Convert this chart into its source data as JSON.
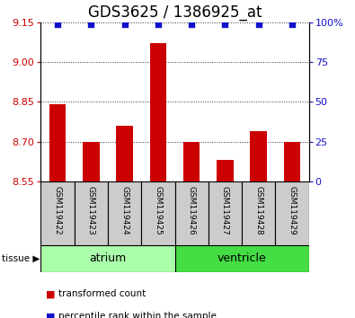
{
  "title": "GDS3625 / 1386925_at",
  "samples": [
    "GSM119422",
    "GSM119423",
    "GSM119424",
    "GSM119425",
    "GSM119426",
    "GSM119427",
    "GSM119428",
    "GSM119429"
  ],
  "bar_values": [
    8.84,
    8.7,
    8.76,
    9.07,
    8.7,
    8.63,
    8.74,
    8.7
  ],
  "percentile_values": [
    99,
    99,
    99,
    99,
    99,
    99,
    99,
    99
  ],
  "ylim_left": [
    8.55,
    9.15
  ],
  "ylim_right": [
    0,
    100
  ],
  "yticks_left": [
    8.55,
    8.7,
    8.85,
    9.0,
    9.15
  ],
  "yticks_right": [
    0,
    25,
    50,
    75,
    100
  ],
  "ytick_labels_right": [
    "0",
    "25",
    "50",
    "75",
    "100%"
  ],
  "bar_color": "#CC0000",
  "percentile_color": "#1111CC",
  "bar_bottom": 8.55,
  "tissue_groups": [
    {
      "label": "atrium",
      "color": "#AAFFAA"
    },
    {
      "label": "ventricle",
      "color": "#44DD44"
    }
  ],
  "tissue_label": "tissue",
  "legend_items": [
    {
      "label": "transformed count",
      "color": "#CC0000"
    },
    {
      "label": "percentile rank within the sample",
      "color": "#1111CC"
    }
  ],
  "grid_color": "#333333",
  "plot_bg": "#FFFFFF",
  "sample_box_color": "#CCCCCC",
  "title_fontsize": 12,
  "tick_fontsize": 8,
  "sample_fontsize": 6.5,
  "tissue_fontsize": 9,
  "legend_fontsize": 8
}
